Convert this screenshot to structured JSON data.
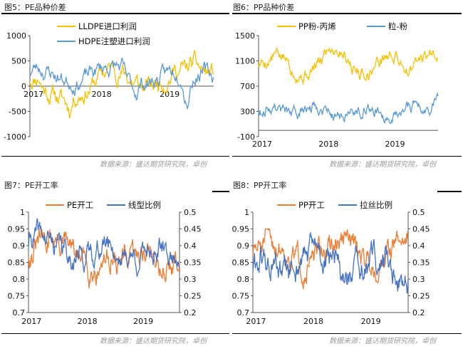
{
  "source_label": "数据来源：盛达期货研究院，卓创",
  "chart_data": [
    {
      "id": "fig5",
      "figure_title": "图5：PE品种价差",
      "type": "line",
      "x_labels": [
        "2017",
        "2018",
        "2019"
      ],
      "y_ticks": [
        1000,
        500,
        0,
        -500,
        -1000
      ],
      "ylim": [
        -1000,
        1000
      ],
      "series": [
        {
          "name": "LLDPE进口利润",
          "color": "#F5C000"
        },
        {
          "name": "HDPE注塑进口利润",
          "color": "#5B9BD5"
        }
      ]
    },
    {
      "id": "fig6",
      "figure_title": "图6：PP品种价差",
      "type": "line",
      "x_labels": [
        "2017",
        "2018",
        "2019"
      ],
      "y_ticks": [
        1500,
        1100,
        700,
        300,
        -100
      ],
      "ylim": [
        -100,
        1500
      ],
      "series": [
        {
          "name": "PP粉-丙烯",
          "color": "#F5C000"
        },
        {
          "name": "粒-粉",
          "color": "#5B9BD5"
        }
      ]
    },
    {
      "id": "fig7",
      "figure_title": "图7：PE开工率",
      "type": "line",
      "x_labels": [
        "2017",
        "2018",
        "2019"
      ],
      "y_ticks_left": [
        1,
        0.95,
        0.9,
        0.85,
        0.8,
        0.75,
        0.7
      ],
      "ylim_left": [
        0.7,
        1
      ],
      "y_ticks_right": [
        0.5,
        0.45,
        0.4,
        0.35,
        0.3,
        0.25,
        0.2
      ],
      "ylim_right": [
        0.2,
        0.5
      ],
      "series": [
        {
          "name": "PE开工",
          "color": "#ED7D31",
          "axis": "left"
        },
        {
          "name": "线型比例",
          "color": "#4472C4",
          "axis": "right"
        }
      ]
    },
    {
      "id": "fig8",
      "figure_title": "图8：PP开工率",
      "type": "line",
      "x_labels": [
        "2017",
        "2018",
        "2019"
      ],
      "y_ticks_left": [
        1,
        0.95,
        0.9,
        0.85,
        0.8,
        0.75,
        0.7
      ],
      "ylim_left": [
        0.7,
        1
      ],
      "y_ticks_right": [
        0.5,
        0.45,
        0.4,
        0.35,
        0.3,
        0.25,
        0.2
      ],
      "ylim_right": [
        0.2,
        0.5
      ],
      "series": [
        {
          "name": "PP开工",
          "color": "#ED7D31",
          "axis": "left"
        },
        {
          "name": "拉丝比例",
          "color": "#4472C4",
          "axis": "right"
        }
      ]
    }
  ]
}
